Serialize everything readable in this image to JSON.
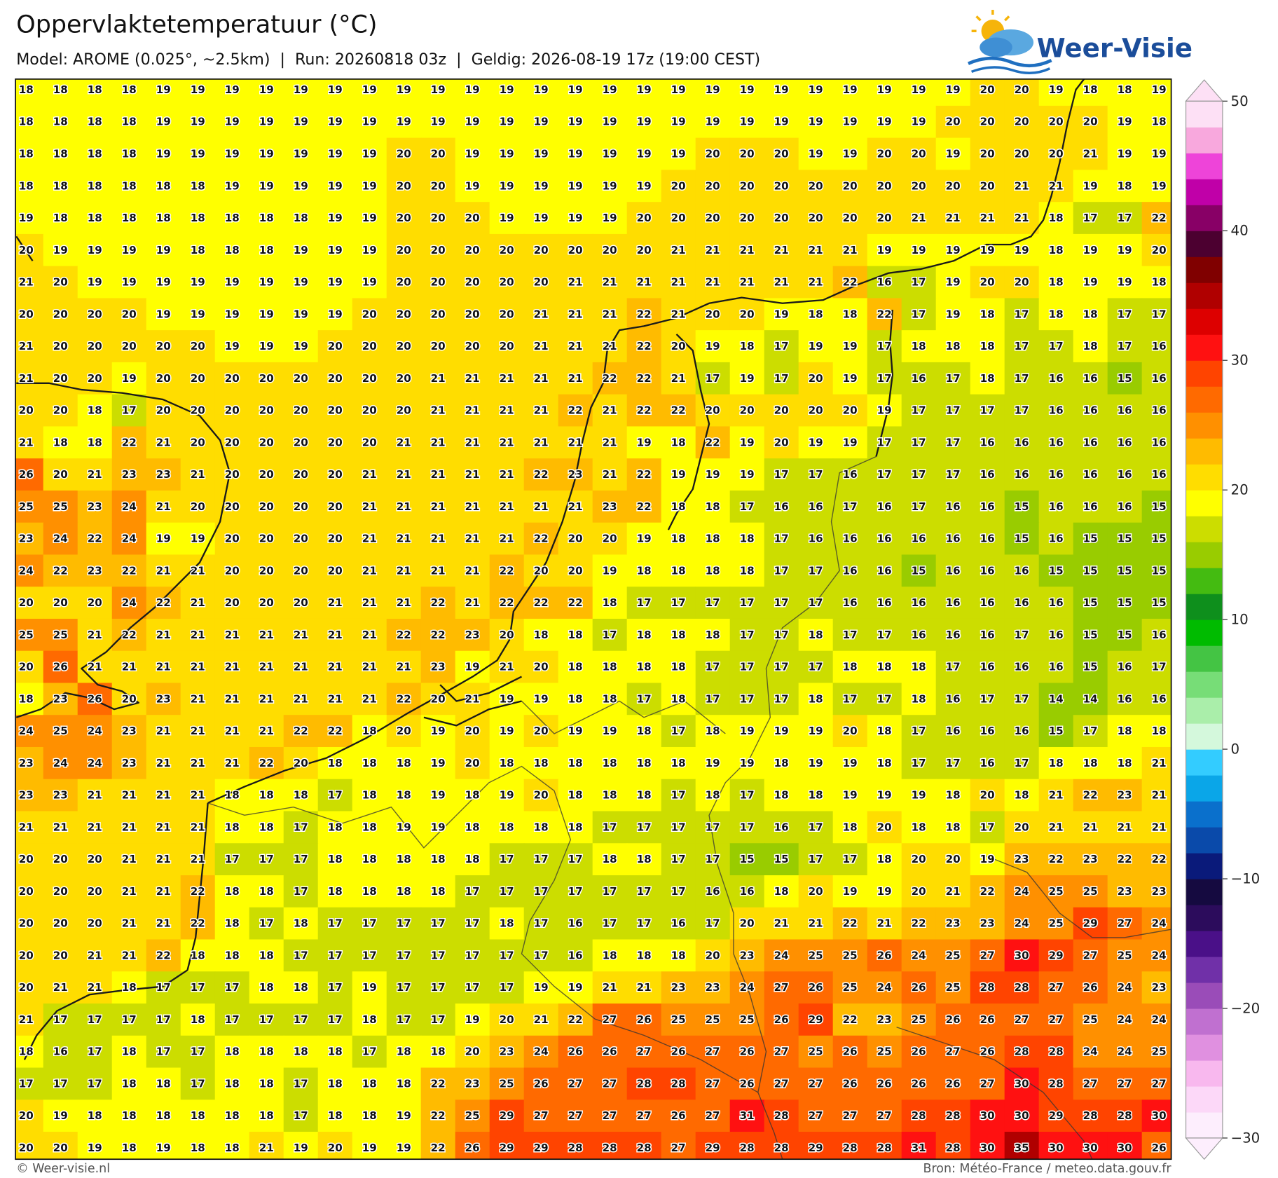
{
  "header": {
    "title": "Oppervlaktetemperatuur (°C)",
    "subtitle": "Model: AROME (0.025°, ~2.5km)  |  Run: 20260818 03z  |  Geldig: 2026-08-19 17z (19:00 CEST)"
  },
  "logo": "Weer-Visie",
  "map": {
    "type": "heatmap",
    "values": [
      [
        18,
        18,
        18,
        18,
        19,
        19,
        19,
        19,
        19,
        19,
        19,
        19,
        19,
        19,
        19,
        19,
        19,
        19,
        19,
        19,
        19,
        19,
        19,
        19,
        19,
        19,
        19,
        19,
        20,
        20,
        19,
        18,
        18,
        19
      ],
      [
        18,
        18,
        18,
        18,
        19,
        19,
        19,
        19,
        19,
        19,
        19,
        19,
        19,
        19,
        19,
        19,
        19,
        19,
        19,
        19,
        19,
        19,
        19,
        19,
        19,
        19,
        19,
        20,
        20,
        20,
        20,
        20,
        19,
        18
      ],
      [
        18,
        18,
        18,
        18,
        19,
        19,
        19,
        19,
        19,
        19,
        19,
        20,
        20,
        19,
        19,
        19,
        19,
        19,
        19,
        19,
        20,
        20,
        20,
        19,
        19,
        20,
        20,
        19,
        20,
        20,
        20,
        21,
        19,
        19
      ],
      [
        18,
        18,
        18,
        18,
        18,
        18,
        19,
        19,
        19,
        19,
        19,
        20,
        20,
        19,
        19,
        19,
        19,
        19,
        19,
        20,
        20,
        20,
        20,
        20,
        20,
        20,
        20,
        20,
        20,
        21,
        21,
        19,
        18,
        19
      ],
      [
        19,
        18,
        18,
        18,
        18,
        18,
        18,
        18,
        18,
        19,
        19,
        20,
        20,
        20,
        19,
        19,
        19,
        19,
        20,
        20,
        20,
        20,
        20,
        20,
        20,
        20,
        21,
        21,
        21,
        21,
        18,
        17,
        17,
        22
      ],
      [
        20,
        19,
        19,
        19,
        19,
        18,
        18,
        18,
        19,
        19,
        19,
        20,
        20,
        20,
        20,
        20,
        20,
        20,
        20,
        21,
        21,
        21,
        21,
        21,
        21,
        19,
        19,
        19,
        19,
        19,
        18,
        19,
        19,
        20
      ],
      [
        21,
        20,
        19,
        19,
        19,
        19,
        19,
        19,
        19,
        19,
        19,
        20,
        20,
        20,
        20,
        20,
        21,
        21,
        21,
        21,
        21,
        21,
        21,
        21,
        22,
        16,
        17,
        19,
        20,
        20,
        18,
        19,
        19,
        18
      ],
      [
        20,
        20,
        20,
        20,
        19,
        19,
        19,
        19,
        19,
        19,
        20,
        20,
        20,
        20,
        20,
        21,
        21,
        21,
        22,
        21,
        20,
        20,
        19,
        18,
        18,
        22,
        17,
        19,
        18,
        17,
        18,
        18,
        17,
        17
      ],
      [
        21,
        20,
        20,
        20,
        20,
        20,
        19,
        19,
        19,
        20,
        20,
        20,
        20,
        20,
        20,
        21,
        21,
        21,
        22,
        20,
        19,
        18,
        17,
        19,
        19,
        17,
        18,
        18,
        18,
        17,
        17,
        18,
        17,
        16
      ],
      [
        21,
        20,
        20,
        19,
        20,
        20,
        20,
        20,
        20,
        20,
        20,
        20,
        21,
        21,
        21,
        21,
        21,
        22,
        22,
        21,
        17,
        19,
        17,
        20,
        19,
        17,
        16,
        17,
        18,
        17,
        16,
        16,
        15,
        16
      ],
      [
        20,
        20,
        18,
        17,
        20,
        20,
        20,
        20,
        20,
        20,
        20,
        20,
        21,
        21,
        21,
        21,
        22,
        21,
        22,
        22,
        20,
        20,
        20,
        20,
        20,
        19,
        17,
        17,
        17,
        17,
        16,
        16,
        16,
        16
      ],
      [
        21,
        18,
        18,
        22,
        21,
        20,
        20,
        20,
        20,
        20,
        20,
        21,
        21,
        21,
        21,
        21,
        21,
        21,
        19,
        18,
        22,
        19,
        20,
        19,
        19,
        17,
        17,
        17,
        16,
        16,
        16,
        16,
        16,
        16
      ],
      [
        26,
        20,
        21,
        23,
        23,
        21,
        20,
        20,
        20,
        20,
        21,
        21,
        21,
        21,
        21,
        22,
        23,
        21,
        22,
        19,
        19,
        19,
        17,
        17,
        16,
        17,
        17,
        17,
        16,
        16,
        16,
        16,
        16,
        16
      ],
      [
        25,
        25,
        23,
        24,
        21,
        20,
        20,
        20,
        20,
        20,
        21,
        21,
        21,
        21,
        21,
        21,
        21,
        23,
        22,
        18,
        18,
        17,
        16,
        16,
        17,
        16,
        17,
        16,
        16,
        15,
        16,
        16,
        16,
        15
      ],
      [
        23,
        24,
        22,
        24,
        19,
        19,
        20,
        20,
        20,
        20,
        21,
        21,
        21,
        21,
        21,
        22,
        20,
        20,
        19,
        18,
        18,
        18,
        17,
        16,
        16,
        16,
        16,
        16,
        16,
        15,
        16,
        15,
        15,
        15
      ],
      [
        24,
        22,
        23,
        22,
        21,
        21,
        20,
        20,
        20,
        20,
        21,
        21,
        21,
        21,
        22,
        20,
        20,
        19,
        18,
        18,
        18,
        18,
        17,
        17,
        16,
        16,
        15,
        16,
        16,
        16,
        15,
        15,
        15,
        15
      ],
      [
        20,
        20,
        20,
        24,
        22,
        21,
        20,
        20,
        20,
        21,
        21,
        21,
        22,
        21,
        22,
        22,
        22,
        18,
        17,
        17,
        17,
        17,
        17,
        17,
        16,
        16,
        16,
        16,
        16,
        16,
        16,
        15,
        15,
        15
      ],
      [
        25,
        25,
        21,
        22,
        21,
        21,
        21,
        21,
        21,
        21,
        21,
        22,
        22,
        23,
        20,
        18,
        18,
        17,
        18,
        18,
        18,
        17,
        17,
        18,
        17,
        17,
        16,
        16,
        16,
        17,
        16,
        15,
        15,
        16
      ],
      [
        20,
        26,
        21,
        21,
        21,
        21,
        21,
        21,
        21,
        21,
        21,
        21,
        23,
        19,
        21,
        20,
        18,
        18,
        18,
        18,
        17,
        17,
        17,
        17,
        18,
        18,
        18,
        17,
        16,
        16,
        16,
        15,
        16,
        17
      ],
      [
        18,
        23,
        26,
        20,
        23,
        21,
        21,
        21,
        21,
        21,
        21,
        22,
        20,
        21,
        19,
        19,
        18,
        18,
        17,
        18,
        17,
        17,
        17,
        18,
        17,
        17,
        18,
        16,
        17,
        17,
        14,
        14,
        16,
        16
      ],
      [
        24,
        25,
        24,
        23,
        21,
        21,
        21,
        21,
        22,
        22,
        18,
        20,
        19,
        20,
        19,
        20,
        19,
        19,
        18,
        17,
        18,
        19,
        19,
        19,
        20,
        18,
        17,
        16,
        16,
        16,
        15,
        17,
        18,
        18
      ],
      [
        23,
        24,
        24,
        23,
        21,
        21,
        21,
        22,
        20,
        18,
        18,
        18,
        19,
        20,
        18,
        18,
        18,
        18,
        18,
        18,
        19,
        19,
        18,
        19,
        19,
        18,
        17,
        17,
        16,
        17,
        18,
        18,
        18,
        21
      ],
      [
        23,
        23,
        21,
        21,
        21,
        21,
        18,
        18,
        18,
        17,
        18,
        18,
        19,
        18,
        19,
        20,
        18,
        18,
        18,
        17,
        18,
        17,
        18,
        18,
        19,
        19,
        19,
        18,
        20,
        18,
        21,
        22,
        23,
        21
      ],
      [
        21,
        21,
        21,
        21,
        21,
        21,
        18,
        18,
        17,
        18,
        18,
        19,
        19,
        18,
        18,
        18,
        18,
        17,
        17,
        17,
        17,
        17,
        16,
        17,
        18,
        20,
        18,
        18,
        17,
        20,
        21,
        21,
        21,
        21
      ],
      [
        20,
        20,
        20,
        21,
        21,
        21,
        17,
        17,
        17,
        18,
        18,
        18,
        18,
        18,
        17,
        17,
        17,
        18,
        18,
        17,
        17,
        15,
        15,
        17,
        17,
        18,
        20,
        20,
        19,
        23,
        22,
        23,
        22,
        22
      ],
      [
        20,
        20,
        20,
        21,
        21,
        22,
        18,
        18,
        17,
        18,
        18,
        18,
        18,
        17,
        17,
        17,
        17,
        17,
        17,
        17,
        16,
        16,
        18,
        20,
        19,
        19,
        20,
        21,
        22,
        24,
        25,
        25,
        23,
        23
      ],
      [
        20,
        20,
        20,
        21,
        21,
        22,
        18,
        17,
        18,
        17,
        17,
        17,
        17,
        17,
        18,
        17,
        16,
        17,
        17,
        16,
        17,
        20,
        21,
        21,
        22,
        21,
        22,
        23,
        23,
        24,
        25,
        29,
        27,
        24
      ],
      [
        20,
        20,
        21,
        21,
        22,
        18,
        18,
        18,
        17,
        17,
        17,
        17,
        17,
        17,
        17,
        17,
        16,
        18,
        18,
        18,
        20,
        23,
        24,
        25,
        25,
        26,
        24,
        25,
        27,
        30,
        29,
        27,
        25,
        24
      ],
      [
        20,
        21,
        21,
        18,
        17,
        17,
        17,
        18,
        18,
        17,
        19,
        17,
        17,
        17,
        17,
        19,
        19,
        21,
        21,
        23,
        23,
        24,
        27,
        26,
        25,
        24,
        26,
        25,
        28,
        28,
        27,
        26,
        24,
        23
      ],
      [
        21,
        17,
        17,
        17,
        17,
        18,
        17,
        17,
        17,
        17,
        18,
        17,
        17,
        19,
        20,
        21,
        22,
        27,
        26,
        25,
        25,
        25,
        26,
        29,
        22,
        23,
        25,
        26,
        26,
        27,
        27,
        25,
        24,
        24
      ],
      [
        18,
        16,
        17,
        18,
        17,
        17,
        18,
        18,
        18,
        18,
        17,
        18,
        18,
        20,
        23,
        24,
        26,
        26,
        27,
        26,
        27,
        26,
        27,
        25,
        26,
        25,
        26,
        27,
        26,
        28,
        28,
        24,
        24,
        25
      ],
      [
        17,
        17,
        17,
        18,
        18,
        17,
        18,
        18,
        17,
        18,
        18,
        18,
        22,
        23,
        25,
        26,
        27,
        27,
        28,
        28,
        27,
        26,
        27,
        27,
        26,
        26,
        26,
        26,
        27,
        30,
        28,
        27,
        27,
        27
      ],
      [
        20,
        19,
        18,
        18,
        18,
        18,
        18,
        18,
        17,
        18,
        18,
        19,
        22,
        25,
        29,
        27,
        27,
        27,
        27,
        26,
        27,
        31,
        28,
        27,
        27,
        27,
        28,
        28,
        30,
        30,
        29,
        28,
        28,
        30
      ],
      [
        20,
        20,
        19,
        18,
        19,
        18,
        18,
        21,
        19,
        20,
        19,
        19,
        22,
        26,
        29,
        29,
        28,
        28,
        28,
        27,
        29,
        28,
        28,
        29,
        28,
        28,
        31,
        28,
        30,
        35,
        30,
        30,
        30,
        26
      ]
    ]
  },
  "colorbar": {
    "lim": [
      -30,
      50
    ],
    "ticks": [
      50,
      40,
      30,
      20,
      10,
      0,
      {
        "value": -10,
        "label": "−10"
      },
      {
        "value": -20,
        "label": "−20"
      },
      {
        "value": -30,
        "label": "−30"
      }
    ],
    "colors": [
      "#fdeefd",
      "#fcd8f8",
      "#f8b8ee",
      "#e090e0",
      "#c070d0",
      "#9a4cb8",
      "#7030a8",
      "#4a1088",
      "#2c0c5c",
      "#150a40",
      "#0a1a7a",
      "#0a4aaa",
      "#0a70cc",
      "#0aa6e8",
      "#33ccff",
      "#d4f8dc",
      "#aaeeaa",
      "#77dd77",
      "#44c444",
      "#00bb00",
      "#0e8f1c",
      "#44bb11",
      "#99cc00",
      "#ccdd00",
      "#ffff00",
      "#ffdd00",
      "#ffbb00",
      "#ff9000",
      "#ff6a00",
      "#ff4400",
      "#ff1111",
      "#dd0000",
      "#b00000",
      "#800000",
      "#4c0030",
      "#880066",
      "#c000a8",
      "#ee44d9",
      "#f8a8dd",
      "#fde0f5"
    ]
  },
  "footer": {
    "left": "© Weer-visie.nl",
    "right": "Bron: Météo-France / meteo.data.gouv.fr"
  }
}
